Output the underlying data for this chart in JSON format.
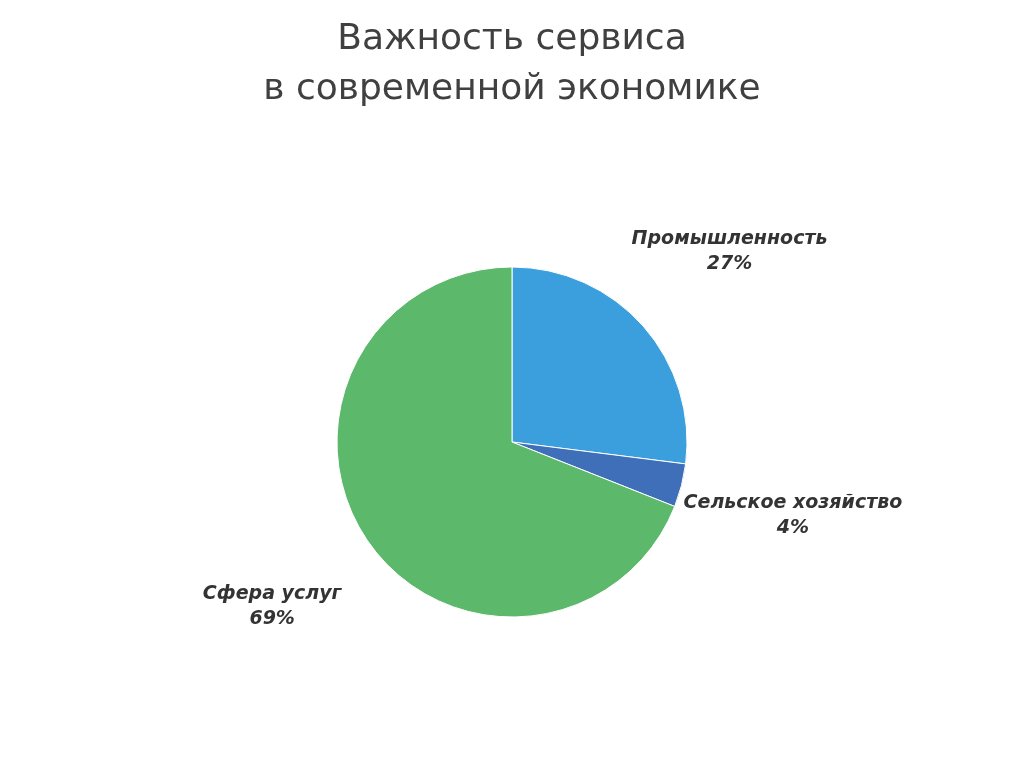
{
  "chart_data": {
    "type": "pie",
    "title": "Важность сервиса\nв современной экономике",
    "categories": [
      "Промышленность",
      "Сельское хозяйство",
      "Сфера услуг"
    ],
    "values": [
      27,
      4,
      69
    ],
    "value_labels": [
      "27%",
      "4%",
      "69%"
    ],
    "colors": [
      "#3a9fdc",
      "#3f6fb8",
      "#5cb86a"
    ]
  }
}
